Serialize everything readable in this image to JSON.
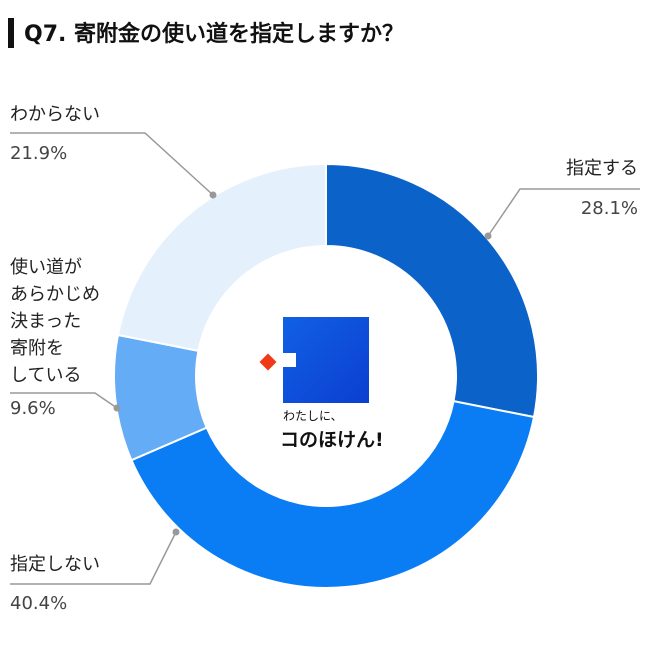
{
  "chart_data": {
    "type": "donut",
    "title": "Q7. 寄附金の使い道を指定しますか？",
    "categories": [
      "指定する",
      "指定しない",
      "使い道が\nあらかじめ\n決まった\n寄附を\nしている",
      "わからない"
    ],
    "values": [
      28.1,
      40.4,
      9.6,
      21.9
    ],
    "value_labels": [
      "28.1%",
      "40.4%",
      "9.6%",
      "21.9%"
    ],
    "colors": [
      "#0b62c9",
      "#0a7df5",
      "#64acf6",
      "#e4f1fd"
    ],
    "center_text": [
      "わたしに、",
      "コのほけん!"
    ]
  }
}
